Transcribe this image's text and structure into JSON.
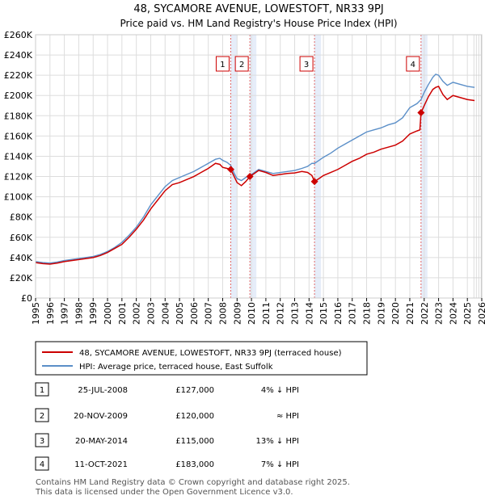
{
  "chart_data": {
    "type": "line",
    "title": "48, SYCAMORE AVENUE, LOWESTOFT, NR33 9PJ",
    "subtitle": "Price paid vs. HM Land Registry's House Price Index (HPI)",
    "xlabel": "",
    "ylabel": "",
    "xlim": [
      1995,
      2026
    ],
    "ylim": [
      0,
      260000
    ],
    "y_ticks": [
      0,
      20000,
      40000,
      60000,
      80000,
      100000,
      120000,
      140000,
      160000,
      180000,
      200000,
      220000,
      240000,
      260000
    ],
    "y_tick_labels": [
      "£0",
      "£20K",
      "£40K",
      "£60K",
      "£80K",
      "£100K",
      "£120K",
      "£140K",
      "£160K",
      "£180K",
      "£200K",
      "£220K",
      "£240K",
      "£260K"
    ],
    "x_ticks": [
      1995,
      1996,
      1997,
      1998,
      1999,
      2000,
      2001,
      2002,
      2003,
      2004,
      2005,
      2006,
      2007,
      2008,
      2009,
      2010,
      2011,
      2012,
      2013,
      2014,
      2015,
      2016,
      2017,
      2018,
      2019,
      2020,
      2021,
      2022,
      2023,
      2024,
      2025,
      2026
    ],
    "x_tick_labels": [
      "1995",
      "1996",
      "1997",
      "1998",
      "1999",
      "2000",
      "2001",
      "2002",
      "2003",
      "2004",
      "2005",
      "2006",
      "2007",
      "2008",
      "2009",
      "2010",
      "2011",
      "2012",
      "2013",
      "2014",
      "2015",
      "2016",
      "2017",
      "2018",
      "2019",
      "2020",
      "2021",
      "2022",
      "2023",
      "2024",
      "2025",
      "2026"
    ],
    "grid": true,
    "series": [
      {
        "name": "48, SYCAMORE AVENUE, LOWESTOFT, NR33 9PJ (terraced house)",
        "color": "#cc0000",
        "x": [
          1995.0,
          1995.5,
          1996.0,
          1996.5,
          1997.0,
          1997.5,
          1998.0,
          1998.5,
          1999.0,
          1999.5,
          2000.0,
          2000.5,
          2001.0,
          2001.5,
          2002.0,
          2002.5,
          2003.0,
          2003.5,
          2004.0,
          2004.5,
          2005.0,
          2005.5,
          2006.0,
          2006.5,
          2007.0,
          2007.5,
          2007.8,
          2008.0,
          2008.3,
          2008.56,
          2008.8,
          2009.0,
          2009.3,
          2009.6,
          2009.89,
          2010.2,
          2010.5,
          2011.0,
          2011.5,
          2012.0,
          2012.5,
          2013.0,
          2013.5,
          2013.9,
          2014.2,
          2014.38,
          2014.7,
          2015.0,
          2015.5,
          2016.0,
          2016.5,
          2017.0,
          2017.5,
          2018.0,
          2018.5,
          2019.0,
          2019.5,
          2020.0,
          2020.5,
          2021.0,
          2021.5,
          2021.7,
          2021.78,
          2022.0,
          2022.3,
          2022.6,
          2022.8,
          2023.0,
          2023.3,
          2023.6,
          2024.0,
          2024.5,
          2025.0,
          2025.5
        ],
        "values": [
          35000,
          34000,
          33500,
          34500,
          36000,
          37000,
          38000,
          39000,
          40000,
          42000,
          45000,
          49000,
          53000,
          60000,
          68000,
          77000,
          88000,
          97000,
          106000,
          112000,
          114000,
          117000,
          120000,
          124000,
          128000,
          133000,
          132000,
          129000,
          128000,
          127000,
          120000,
          114000,
          111000,
          115000,
          120000,
          123000,
          126000,
          124000,
          121000,
          122000,
          123000,
          123500,
          125000,
          124000,
          121000,
          115000,
          118000,
          121000,
          124000,
          127000,
          131000,
          135000,
          138000,
          142000,
          144000,
          147000,
          149000,
          151000,
          155000,
          162000,
          165000,
          166000,
          183000,
          190000,
          199000,
          206000,
          208000,
          209000,
          201000,
          196000,
          200000,
          198000,
          196000,
          195000
        ]
      },
      {
        "name": "HPI: Average price, terraced house, East Suffolk",
        "color": "#5b8fc8",
        "x": [
          1995.0,
          1995.5,
          1996.0,
          1996.5,
          1997.0,
          1997.5,
          1998.0,
          1998.5,
          1999.0,
          1999.5,
          2000.0,
          2000.5,
          2001.0,
          2001.5,
          2002.0,
          2002.5,
          2003.0,
          2003.5,
          2004.0,
          2004.5,
          2005.0,
          2005.5,
          2006.0,
          2006.5,
          2007.0,
          2007.5,
          2007.8,
          2008.0,
          2008.3,
          2008.56,
          2008.8,
          2009.0,
          2009.3,
          2009.6,
          2009.89,
          2010.2,
          2010.5,
          2011.0,
          2011.5,
          2012.0,
          2012.5,
          2013.0,
          2013.5,
          2013.9,
          2014.2,
          2014.38,
          2014.7,
          2015.0,
          2015.5,
          2016.0,
          2016.5,
          2017.0,
          2017.5,
          2018.0,
          2018.5,
          2019.0,
          2019.5,
          2020.0,
          2020.5,
          2021.0,
          2021.5,
          2021.78,
          2022.0,
          2022.3,
          2022.6,
          2022.8,
          2023.0,
          2023.3,
          2023.6,
          2024.0,
          2024.5,
          2025.0,
          2025.5
        ],
        "values": [
          36000,
          35000,
          34500,
          35500,
          37000,
          38000,
          39000,
          40000,
          41000,
          43000,
          46000,
          50000,
          55000,
          62000,
          70000,
          80000,
          92000,
          101000,
          110000,
          116000,
          119000,
          122000,
          125000,
          129000,
          133000,
          137000,
          138000,
          136000,
          134000,
          131000,
          123000,
          118000,
          116000,
          119000,
          121000,
          124000,
          127000,
          125000,
          123000,
          124000,
          125000,
          126000,
          128000,
          130000,
          133000,
          133000,
          136000,
          139000,
          143000,
          148000,
          152000,
          156000,
          160000,
          164000,
          166000,
          168000,
          171000,
          173000,
          178000,
          188000,
          192000,
          196000,
          203000,
          211000,
          218000,
          221000,
          220000,
          214000,
          210000,
          213000,
          211000,
          209000,
          208000
        ]
      }
    ],
    "sales": [
      {
        "id": "1",
        "x": 2008.56,
        "value": 127000,
        "date": "25-JUL-2008",
        "price": "£127,000",
        "hpi": "4% ↓ HPI"
      },
      {
        "id": "2",
        "x": 2009.89,
        "value": 120000,
        "date": "20-NOV-2009",
        "price": "£120,000",
        "hpi": "≈ HPI"
      },
      {
        "id": "3",
        "x": 2014.38,
        "value": 115000,
        "date": "20-MAY-2014",
        "price": "£115,000",
        "hpi": "13% ↓ HPI"
      },
      {
        "id": "4",
        "x": 2021.78,
        "value": 183000,
        "date": "11-OCT-2021",
        "price": "£183,000",
        "hpi": "7% ↓ HPI"
      }
    ],
    "legend_position": "below-plot",
    "footer": [
      "Contains HM Land Registry data © Crown copyright and database right 2025.",
      "This data is licensed under the Open Government Licence v3.0."
    ]
  },
  "colors": {
    "price": "#cc0000",
    "hpi": "#5b8fc8",
    "marker_line": "#e06666",
    "shade": "#dce6f6"
  }
}
